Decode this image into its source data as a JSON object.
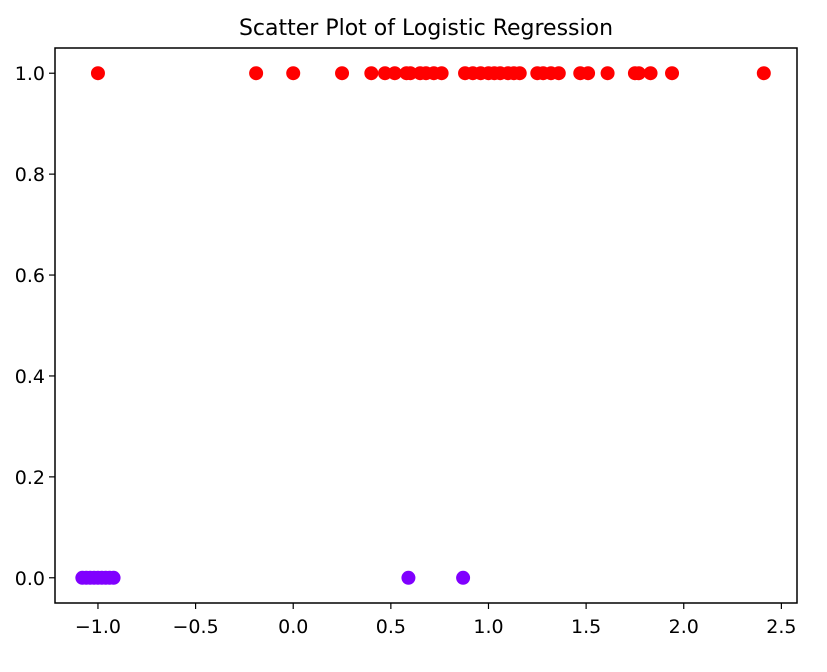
{
  "chart_data": {
    "type": "scatter",
    "title": "Scatter Plot of Logistic Regression",
    "xlabel": "",
    "ylabel": "",
    "xlim": [
      -1.22,
      2.58
    ],
    "ylim": [
      -0.05,
      1.05
    ],
    "xticks": [
      -1.0,
      -0.5,
      0.0,
      0.5,
      1.0,
      1.5,
      2.0,
      2.5
    ],
    "xtick_labels": [
      "−1.0",
      "−0.5",
      "0.0",
      "0.5",
      "1.0",
      "1.5",
      "2.0",
      "2.5"
    ],
    "yticks": [
      0.0,
      0.2,
      0.4,
      0.6,
      0.8,
      1.0
    ],
    "ytick_labels": [
      "0.0",
      "0.2",
      "0.4",
      "0.6",
      "0.8",
      "1.0"
    ],
    "grid": false,
    "colors": {
      "class_0": "#8000ff",
      "class_1": "#ff0000"
    },
    "points": [
      {
        "x": -1.0,
        "y": 1,
        "class": 1
      },
      {
        "x": -0.19,
        "y": 1,
        "class": 1
      },
      {
        "x": 0.0,
        "y": 1,
        "class": 1
      },
      {
        "x": 0.25,
        "y": 1,
        "class": 1
      },
      {
        "x": 0.4,
        "y": 1,
        "class": 1
      },
      {
        "x": 0.47,
        "y": 1,
        "class": 1
      },
      {
        "x": 0.52,
        "y": 1,
        "class": 1
      },
      {
        "x": 0.58,
        "y": 1,
        "class": 1
      },
      {
        "x": 0.6,
        "y": 1,
        "class": 1
      },
      {
        "x": 0.65,
        "y": 1,
        "class": 1
      },
      {
        "x": 0.68,
        "y": 1,
        "class": 1
      },
      {
        "x": 0.72,
        "y": 1,
        "class": 1
      },
      {
        "x": 0.76,
        "y": 1,
        "class": 1
      },
      {
        "x": 0.88,
        "y": 1,
        "class": 1
      },
      {
        "x": 0.92,
        "y": 1,
        "class": 1
      },
      {
        "x": 0.96,
        "y": 1,
        "class": 1
      },
      {
        "x": 1.0,
        "y": 1,
        "class": 1
      },
      {
        "x": 1.03,
        "y": 1,
        "class": 1
      },
      {
        "x": 1.06,
        "y": 1,
        "class": 1
      },
      {
        "x": 1.1,
        "y": 1,
        "class": 1
      },
      {
        "x": 1.13,
        "y": 1,
        "class": 1
      },
      {
        "x": 1.16,
        "y": 1,
        "class": 1
      },
      {
        "x": 1.25,
        "y": 1,
        "class": 1
      },
      {
        "x": 1.28,
        "y": 1,
        "class": 1
      },
      {
        "x": 1.32,
        "y": 1,
        "class": 1
      },
      {
        "x": 1.36,
        "y": 1,
        "class": 1
      },
      {
        "x": 1.47,
        "y": 1,
        "class": 1
      },
      {
        "x": 1.51,
        "y": 1,
        "class": 1
      },
      {
        "x": 1.61,
        "y": 1,
        "class": 1
      },
      {
        "x": 1.75,
        "y": 1,
        "class": 1
      },
      {
        "x": 1.77,
        "y": 1,
        "class": 1
      },
      {
        "x": 1.83,
        "y": 1,
        "class": 1
      },
      {
        "x": 1.94,
        "y": 1,
        "class": 1
      },
      {
        "x": 2.41,
        "y": 1,
        "class": 1
      },
      {
        "x": -1.08,
        "y": 0,
        "class": 0
      },
      {
        "x": -1.06,
        "y": 0,
        "class": 0
      },
      {
        "x": -1.04,
        "y": 0,
        "class": 0
      },
      {
        "x": -1.02,
        "y": 0,
        "class": 0
      },
      {
        "x": -1.0,
        "y": 0,
        "class": 0
      },
      {
        "x": -0.98,
        "y": 0,
        "class": 0
      },
      {
        "x": -0.96,
        "y": 0,
        "class": 0
      },
      {
        "x": -0.94,
        "y": 0,
        "class": 0
      },
      {
        "x": -0.92,
        "y": 0,
        "class": 0
      },
      {
        "x": 0.59,
        "y": 0,
        "class": 0
      },
      {
        "x": 0.87,
        "y": 0,
        "class": 0
      }
    ]
  }
}
